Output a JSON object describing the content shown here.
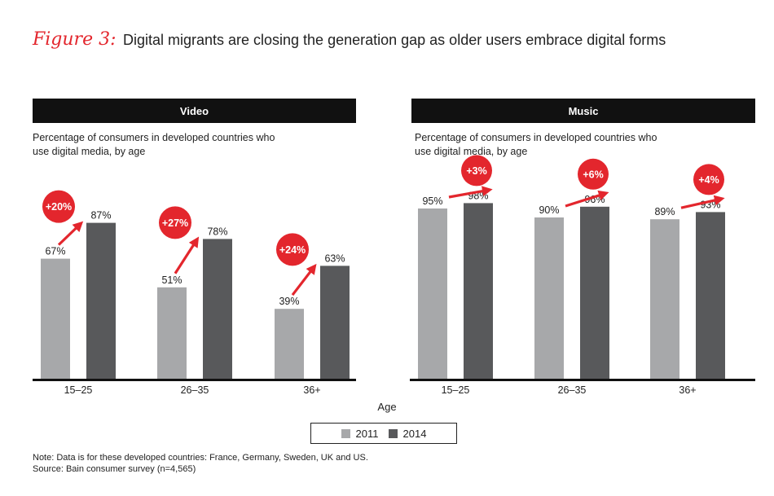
{
  "figure": {
    "label": "Figure 3:",
    "title": "Digital migrants are closing the generation gap as older users embrace digital forms"
  },
  "colors": {
    "series_2011": "#a7a8aa",
    "series_2014": "#58595b",
    "accent": "#e3262d",
    "header": "#111111"
  },
  "chart_data": [
    {
      "type": "bar",
      "title": "Video",
      "subtitle": "Percentage of consumers in developed countries who use digital media, by age",
      "categories": [
        "15–25",
        "26–35",
        "36+"
      ],
      "series": [
        {
          "name": "2011",
          "values": [
            67,
            51,
            39
          ],
          "labels": [
            "67%",
            "51%",
            "39%"
          ]
        },
        {
          "name": "2014",
          "values": [
            87,
            78,
            63
          ],
          "labels": [
            "87%",
            "78%",
            "63%"
          ]
        }
      ],
      "changes": [
        "+20%",
        "+27%",
        "+24%"
      ],
      "xlabel": "Age",
      "ylabel": "",
      "ylim": [
        0,
        100
      ]
    },
    {
      "type": "bar",
      "title": "Music",
      "subtitle": "Percentage of consumers in developed countries who use digital media, by age",
      "categories": [
        "15–25",
        "26–35",
        "36+"
      ],
      "series": [
        {
          "name": "2011",
          "values": [
            95,
            90,
            89
          ],
          "labels": [
            "95%",
            "90%",
            "89%"
          ]
        },
        {
          "name": "2014",
          "values": [
            98,
            96,
            93
          ],
          "labels": [
            "98%",
            "96%",
            "93%"
          ]
        }
      ],
      "changes": [
        "+3%",
        "+6%",
        "+4%"
      ],
      "xlabel": "Age",
      "ylabel": "",
      "ylim": [
        0,
        100
      ]
    }
  ],
  "axis_title": "Age",
  "legend": [
    {
      "label": "2011"
    },
    {
      "label": "2014"
    }
  ],
  "note": "Note: Data is for these developed countries: France, Germany, Sweden, UK and US.",
  "source": "Source: Bain consumer survey (n=4,565)"
}
